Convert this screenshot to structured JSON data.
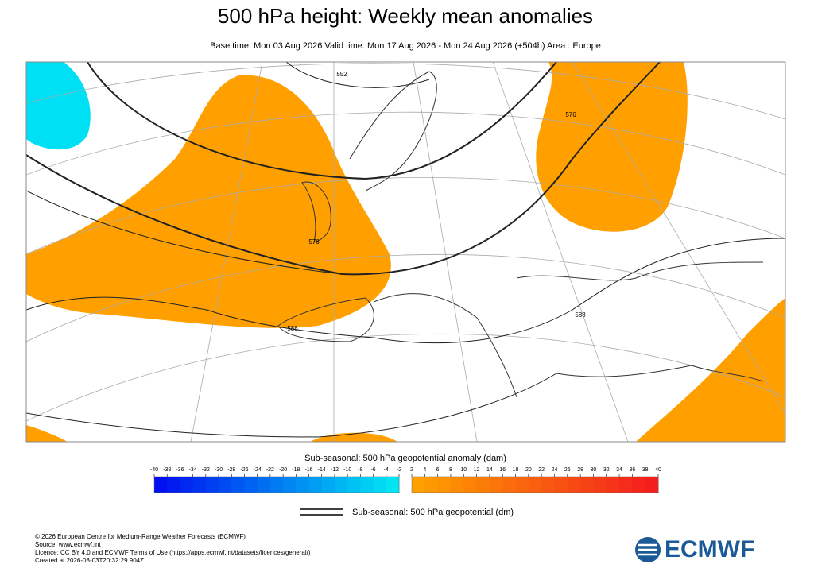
{
  "header": {
    "title": "500 hPa height: Weekly mean anomalies",
    "subtitle": "Base time: Mon 03 Aug 2026 Valid time: Mon 17 Aug 2026 - Mon 24 Aug 2026 (+504h) Area : Europe"
  },
  "map": {
    "contour_labels": [
      "552",
      "576",
      "576",
      "588",
      "588"
    ]
  },
  "colorbar": {
    "label": "Sub-seasonal: 500 hPa geopotential anomaly (dam)",
    "negative_ticks": [
      -40,
      -38,
      -36,
      -34,
      -32,
      -30,
      -28,
      -26,
      -24,
      -22,
      -20,
      -18,
      -16,
      -14,
      -12,
      -10,
      -8,
      -6,
      -4,
      -2
    ],
    "positive_ticks": [
      2,
      4,
      6,
      8,
      10,
      12,
      14,
      16,
      18,
      20,
      22,
      24,
      26,
      28,
      30,
      32,
      34,
      36,
      38,
      40
    ],
    "negative_colors": [
      "#0010f0",
      "#00e4f4"
    ],
    "positive_colors": [
      "#ffa000",
      "#f41e1e"
    ]
  },
  "contour_legend": {
    "label": "Sub-seasonal: 500 hPa geopotential (dm)"
  },
  "footer": {
    "lines": [
      "© 2026 European Centre for Medium-Range Weather Forecasts (ECMWF)",
      "Source: www.ecmwf.int",
      "Licence: CC BY 4.0 and ECMWF Terms of Use (https://apps.ecmwf.int/datasets/licences/general/)",
      "Created at 2026-08-03T20:32:29.904Z"
    ],
    "logo": "ECMWF"
  }
}
